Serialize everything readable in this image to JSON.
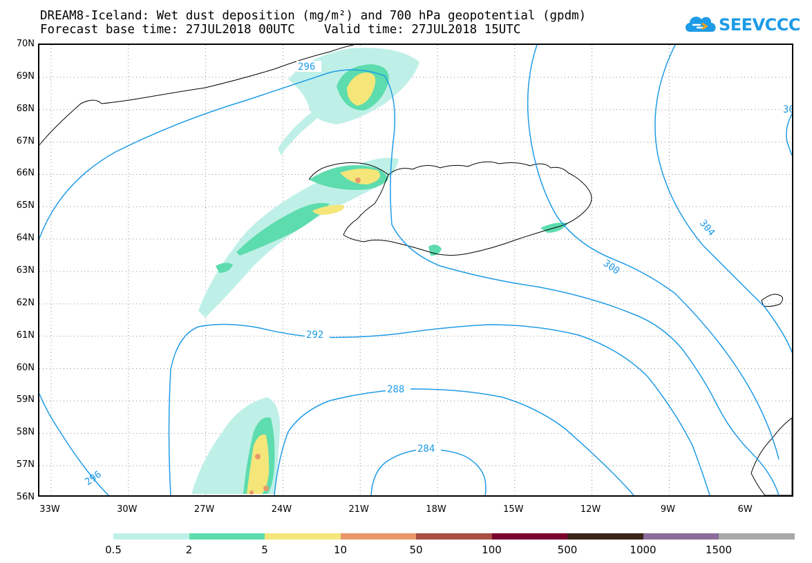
{
  "header": {
    "title_line1": "DREAM8-Iceland: Wet dust deposition (mg/m²) and 700 hPa geopotential (gpdm)",
    "title_line2": "Forecast base time: 27JUL2018 00UTC    Valid time: 27JUL2018 15UTC"
  },
  "logo": {
    "text": "SEEVCCC",
    "icon": "cloud-icon",
    "color": "#1e9be6"
  },
  "map": {
    "lat_labels": [
      "70N",
      "69N",
      "68N",
      "67N",
      "66N",
      "65N",
      "64N",
      "63N",
      "62N",
      "61N",
      "60N",
      "59N",
      "58N",
      "57N",
      "56N"
    ],
    "lon_labels": [
      "33W",
      "30W",
      "27W",
      "24W",
      "21W",
      "18W",
      "15W",
      "12W",
      "9W",
      "6W"
    ],
    "contour_labels": [
      "296",
      "292",
      "288",
      "284",
      "296",
      "300",
      "304",
      "30"
    ],
    "contour_color": "#1e9be6"
  },
  "legend": {
    "colors": [
      "#bff0e8",
      "#5ddcad",
      "#f5e67a",
      "#e8986a",
      "#a84e43",
      "#7a0030",
      "#3a2418",
      "#8c6c9a",
      "#a8a8a8"
    ],
    "labels": [
      "0.5",
      "2",
      "5",
      "10",
      "50",
      "100",
      "500",
      "1000",
      "1500"
    ]
  }
}
